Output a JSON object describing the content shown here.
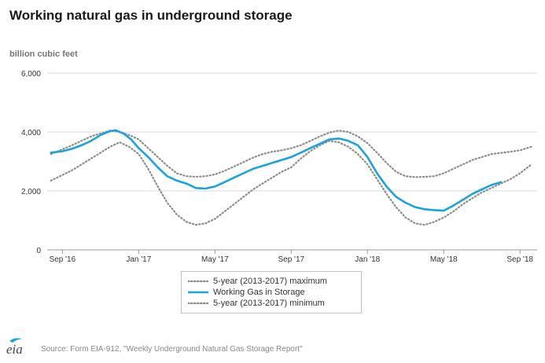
{
  "chart_data": {
    "type": "line",
    "title": "Working natural gas in underground storage",
    "ylabel": "billion cubic feet",
    "xlabel": "",
    "ylim": [
      0,
      6000
    ],
    "yticks": [
      0,
      2000,
      4000,
      6000
    ],
    "ytick_labels": [
      "0",
      "2,000",
      "4,000",
      "6,000"
    ],
    "x_range_months": [
      -0.8,
      24.9
    ],
    "xticks": [
      {
        "label": "Sep '16",
        "month": 0
      },
      {
        "label": "Jan '17",
        "month": 4
      },
      {
        "label": "May '17",
        "month": 8
      },
      {
        "label": "Sep '17",
        "month": 12
      },
      {
        "label": "Jan '18",
        "month": 16
      },
      {
        "label": "May '18",
        "month": 20
      },
      {
        "label": "Sep '18",
        "month": 24
      }
    ],
    "series": [
      {
        "name": "5-year (2013-2017) maximum",
        "style": "dotted",
        "color": "#8c8c8c",
        "x": [
          -0.6,
          0.5,
          1.5,
          2.5,
          3.0,
          3.5,
          4.0,
          4.5,
          5.0,
          5.5,
          6.0,
          6.5,
          7.0,
          7.5,
          8.0,
          8.5,
          9.0,
          9.5,
          10.0,
          10.5,
          11.0,
          11.5,
          12.0,
          12.5,
          13.0,
          13.5,
          14.0,
          14.5,
          15.0,
          15.5,
          16.0,
          16.5,
          17.0,
          17.5,
          18.0,
          18.5,
          19.0,
          19.5,
          20.0,
          20.5,
          21.0,
          21.5,
          22.0,
          22.5,
          23.0,
          23.5,
          24.0,
          24.6
        ],
        "values": [
          3250,
          3550,
          3850,
          4050,
          4000,
          3900,
          3750,
          3450,
          3150,
          2850,
          2600,
          2500,
          2480,
          2500,
          2560,
          2680,
          2830,
          2980,
          3130,
          3250,
          3330,
          3380,
          3450,
          3550,
          3700,
          3850,
          3980,
          4050,
          4000,
          3850,
          3620,
          3300,
          2950,
          2650,
          2500,
          2470,
          2480,
          2500,
          2600,
          2750,
          2900,
          3050,
          3150,
          3250,
          3290,
          3330,
          3380,
          3500
        ]
      },
      {
        "name": "Working Gas in Storage",
        "style": "solid",
        "color": "#19a3df",
        "x": [
          -0.6,
          0.0,
          0.5,
          1.0,
          1.5,
          2.0,
          2.5,
          2.8,
          3.2,
          3.6,
          4.0,
          4.5,
          5.0,
          5.5,
          6.0,
          6.5,
          7.0,
          7.5,
          8.0,
          8.5,
          9.0,
          9.5,
          10.0,
          10.5,
          11.0,
          11.5,
          12.0,
          12.5,
          13.0,
          13.5,
          14.0,
          14.5,
          15.0,
          15.5,
          16.0,
          16.5,
          17.0,
          17.5,
          18.0,
          18.5,
          19.0,
          19.5,
          20.0,
          20.5,
          21.0,
          21.5,
          22.0,
          22.5,
          23.0
        ],
        "values": [
          3300,
          3350,
          3430,
          3550,
          3700,
          3900,
          4030,
          4060,
          3950,
          3750,
          3450,
          3150,
          2800,
          2500,
          2350,
          2250,
          2100,
          2080,
          2150,
          2300,
          2450,
          2600,
          2750,
          2850,
          2950,
          3050,
          3150,
          3300,
          3450,
          3600,
          3750,
          3780,
          3700,
          3550,
          3150,
          2600,
          2150,
          1800,
          1600,
          1450,
          1380,
          1350,
          1330,
          1500,
          1700,
          1900,
          2050,
          2200,
          2300
        ]
      },
      {
        "name": "5-year (2013-2017) minimum",
        "style": "dotted",
        "color": "#8c8c8c",
        "x": [
          -0.6,
          0.5,
          1.5,
          2.5,
          3.0,
          3.5,
          4.0,
          4.5,
          5.0,
          5.5,
          6.0,
          6.5,
          7.0,
          7.5,
          8.0,
          8.5,
          9.0,
          9.5,
          10.0,
          10.5,
          11.0,
          11.5,
          12.0,
          12.5,
          13.0,
          13.5,
          14.0,
          14.5,
          15.0,
          15.5,
          16.0,
          16.5,
          17.0,
          17.5,
          18.0,
          18.5,
          19.0,
          19.5,
          20.0,
          20.5,
          21.0,
          21.5,
          22.0,
          22.5,
          23.0,
          23.5,
          24.0,
          24.6
        ],
        "values": [
          2350,
          2700,
          3100,
          3500,
          3650,
          3500,
          3250,
          2750,
          2150,
          1600,
          1200,
          950,
          850,
          900,
          1050,
          1300,
          1550,
          1800,
          2050,
          2250,
          2450,
          2650,
          2800,
          3100,
          3350,
          3550,
          3700,
          3650,
          3500,
          3250,
          2900,
          2400,
          1900,
          1450,
          1100,
          900,
          850,
          950,
          1100,
          1300,
          1550,
          1750,
          1950,
          2100,
          2250,
          2400,
          2600,
          2900
        ]
      }
    ],
    "legend_position": "bottom-center",
    "grid": "horizontal"
  },
  "source_text": "Source: Form EIA-912, \"Weekly Underground Natural Gas Storage Report\"",
  "logo": {
    "text": "eia"
  },
  "colors": {
    "accent": "#19a3df",
    "reference": "#8c8c8c",
    "grid": "#d9d9d9"
  }
}
